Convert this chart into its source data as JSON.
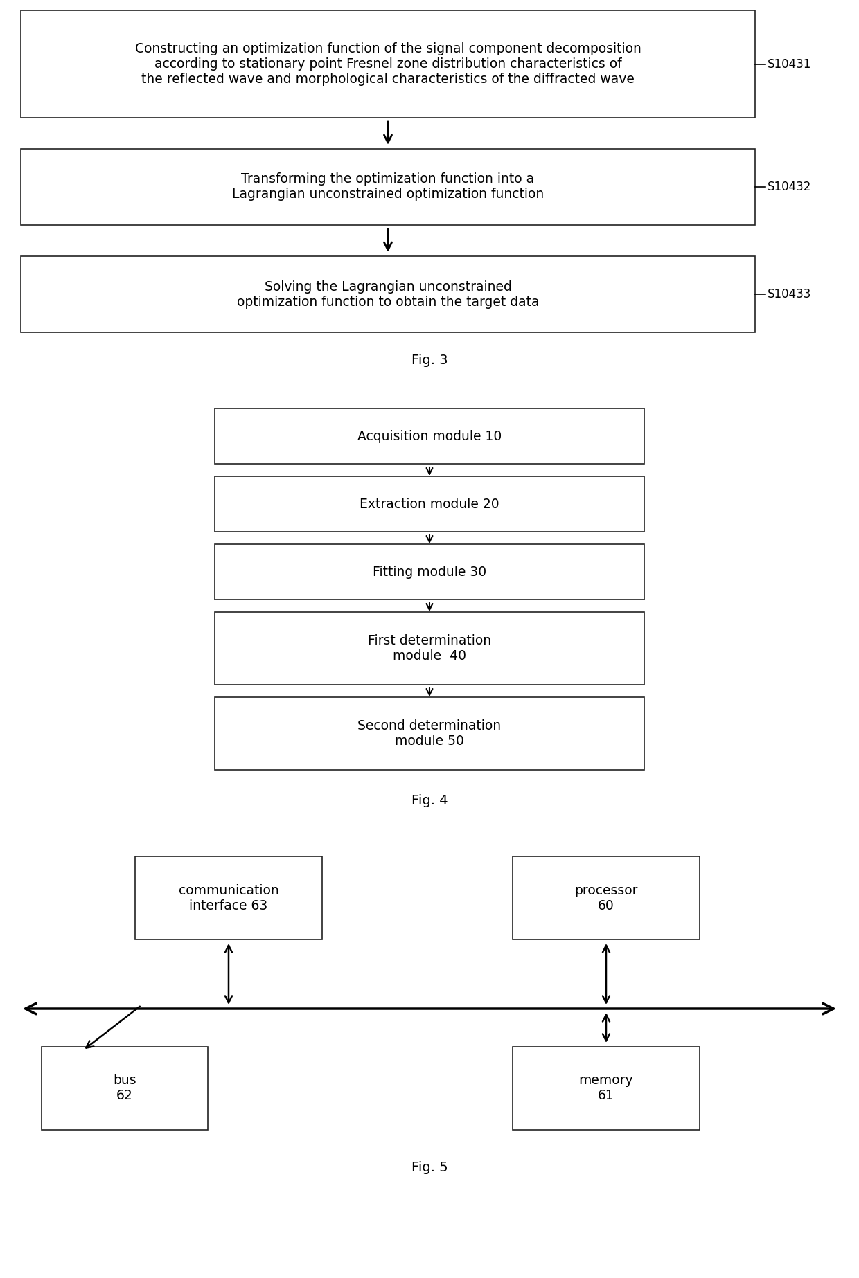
{
  "bg_color": "#ffffff",
  "fig3": {
    "title": "Fig. 3",
    "box1_text": "Constructing an optimization function of the signal component decomposition\naccording to stationary point Fresnel zone distribution characteristics of\nthe reflected wave and morphological characteristics of the diffracted wave",
    "box1_label": "S10431",
    "box2_text": "Transforming the optimization function into a\nLagrangian unconstrained optimization function",
    "box2_label": "S10432",
    "box3_text": "Solving the Lagrangian unconstrained\noptimization function to obtain the target data",
    "box3_label": "S10433"
  },
  "fig4": {
    "title": "Fig. 4",
    "boxes": [
      "Acquisition module 10",
      "Extraction module 20",
      "Fitting module 30",
      "First determination\nmodule  40",
      "Second determination\nmodule 50"
    ]
  },
  "fig5": {
    "title": "Fig. 5",
    "ci_text": "communication\ninterface 63",
    "proc_text": "processor\n60",
    "bus_text": "bus\n62",
    "mem_text": "memory\n61"
  }
}
